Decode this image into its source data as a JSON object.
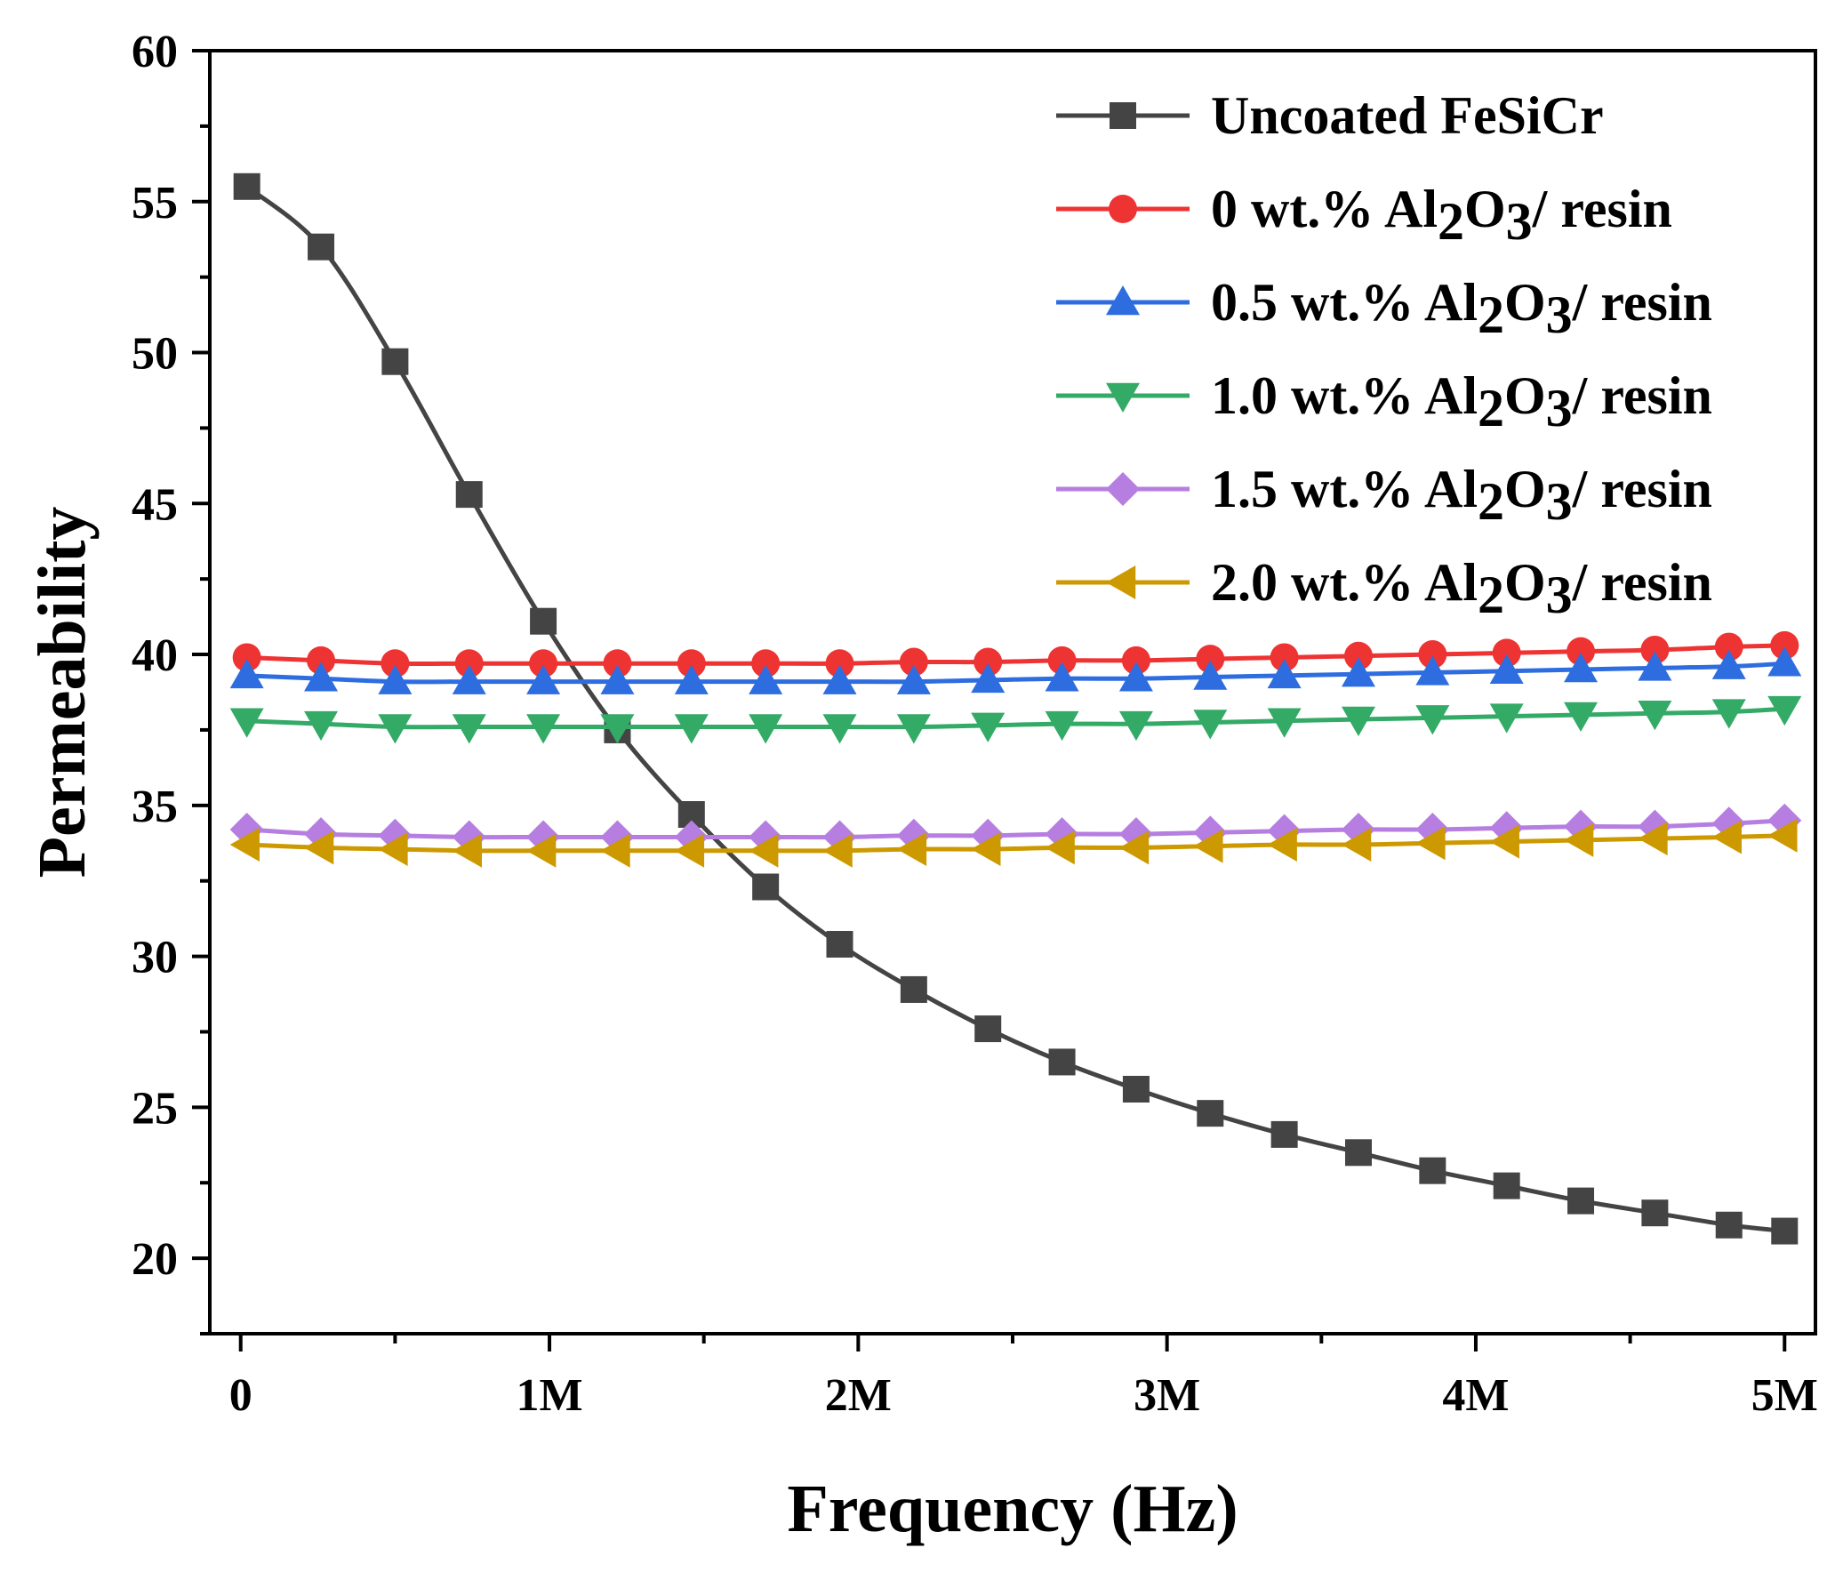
{
  "chart_data": {
    "type": "line",
    "xlabel": "Frequency (Hz)",
    "ylabel": "Permeability",
    "xlim": [
      -100000,
      5100000
    ],
    "ylim": [
      17.5,
      60
    ],
    "x_ticks": [
      0,
      1000000,
      2000000,
      3000000,
      4000000,
      5000000
    ],
    "x_tick_labels": [
      "0",
      "1M",
      "2M",
      "3M",
      "4M",
      "5M"
    ],
    "y_ticks": [
      20,
      25,
      30,
      35,
      40,
      45,
      50,
      55,
      60
    ],
    "y_tick_labels": [
      "20",
      "25",
      "30",
      "35",
      "40",
      "45",
      "50",
      "55",
      "60"
    ],
    "legend_position": "top-right",
    "x": [
      20000,
      260000,
      500000,
      740000,
      980000,
      1220000,
      1460000,
      1700000,
      1940000,
      2180000,
      2420000,
      2660000,
      2900000,
      3140000,
      3380000,
      3620000,
      3860000,
      4100000,
      4340000,
      4580000,
      4820000,
      5000000
    ],
    "series": [
      {
        "name": "Uncoated FeSiCr",
        "legend_parts": [
          "Uncoated FeSiCr"
        ],
        "color": "#444444",
        "marker": "square",
        "values": [
          55.5,
          53.5,
          49.7,
          45.3,
          41.1,
          37.5,
          34.7,
          32.3,
          30.4,
          28.9,
          27.6,
          26.5,
          25.6,
          24.8,
          24.1,
          23.5,
          22.9,
          22.4,
          21.9,
          21.5,
          21.1,
          20.9
        ]
      },
      {
        "name": "0 wt.% Al2O3/ resin",
        "legend_parts": [
          "0 wt.% Al",
          "2",
          "O",
          "3",
          "/ resin"
        ],
        "color": "#ee3333",
        "marker": "circle",
        "values": [
          39.9,
          39.8,
          39.7,
          39.7,
          39.7,
          39.7,
          39.7,
          39.7,
          39.7,
          39.75,
          39.75,
          39.8,
          39.8,
          39.85,
          39.9,
          39.95,
          40.0,
          40.05,
          40.1,
          40.15,
          40.25,
          40.3
        ]
      },
      {
        "name": "0.5 wt.% Al2O3/ resin",
        "legend_parts": [
          "0.5 wt.% Al",
          "2",
          "O",
          "3",
          "/ resin"
        ],
        "color": "#2e6de0",
        "marker": "triangle-up",
        "values": [
          39.3,
          39.2,
          39.1,
          39.1,
          39.1,
          39.1,
          39.1,
          39.1,
          39.1,
          39.1,
          39.15,
          39.2,
          39.2,
          39.25,
          39.3,
          39.35,
          39.4,
          39.45,
          39.5,
          39.55,
          39.6,
          39.7
        ]
      },
      {
        "name": "1.0 wt.% Al2O3/ resin",
        "legend_parts": [
          "1.0 wt.% Al",
          "2",
          "O",
          "3",
          "/ resin"
        ],
        "color": "#33aa66",
        "marker": "triangle-down",
        "values": [
          37.8,
          37.7,
          37.6,
          37.6,
          37.6,
          37.6,
          37.6,
          37.6,
          37.6,
          37.6,
          37.65,
          37.7,
          37.7,
          37.75,
          37.8,
          37.85,
          37.9,
          37.95,
          38.0,
          38.05,
          38.1,
          38.2
        ]
      },
      {
        "name": "1.5 wt.% Al2O3/ resin",
        "legend_parts": [
          "1.5 wt.% Al",
          "2",
          "O",
          "3",
          "/ resin"
        ],
        "color": "#b57ee0",
        "marker": "diamond",
        "values": [
          34.2,
          34.05,
          34.0,
          33.95,
          33.95,
          33.95,
          33.95,
          33.95,
          33.95,
          34.0,
          34.0,
          34.05,
          34.05,
          34.1,
          34.15,
          34.2,
          34.2,
          34.25,
          34.3,
          34.3,
          34.4,
          34.5
        ]
      },
      {
        "name": "2.0 wt.% Al2O3/ resin",
        "legend_parts": [
          "2.0 wt.% Al",
          "2",
          "O",
          "3",
          "/ resin"
        ],
        "color": "#cc9900",
        "marker": "triangle-left",
        "values": [
          33.7,
          33.6,
          33.55,
          33.5,
          33.5,
          33.5,
          33.5,
          33.5,
          33.5,
          33.55,
          33.55,
          33.6,
          33.6,
          33.65,
          33.7,
          33.7,
          33.75,
          33.8,
          33.85,
          33.9,
          33.95,
          34.0
        ]
      }
    ]
  }
}
